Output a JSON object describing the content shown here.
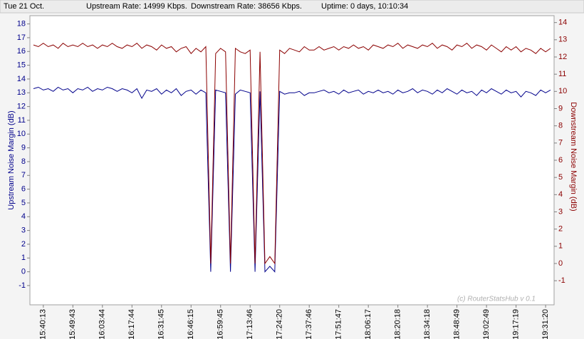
{
  "chart_data": {
    "type": "line",
    "header": {
      "date": "Tue 21 Oct.",
      "upstream_rate": "Upstream Rate: 14999 Kbps.",
      "downstream_rate": "Downstream Rate: 38656 Kbps.",
      "uptime": "Uptime: 0 days, 10:10:34"
    },
    "y_label": "Upstream Noise Margin (dB)",
    "y2_label": "Downstream Noise Margin (dB)",
    "watermark": "(c) RouterStatsHub v 0.1",
    "categories": [
      null,
      null,
      "15:40:13",
      null,
      null,
      null,
      null,
      null,
      "15:49:43",
      null,
      null,
      null,
      null,
      null,
      "16:03:44",
      null,
      null,
      null,
      null,
      null,
      "16:17:44",
      null,
      null,
      null,
      null,
      null,
      "16:31:45",
      null,
      null,
      null,
      null,
      null,
      "16:46:15",
      null,
      null,
      null,
      null,
      null,
      "16:59:45",
      null,
      null,
      null,
      null,
      null,
      "17:13:46",
      null,
      null,
      null,
      null,
      null,
      "17:24:20",
      null,
      null,
      null,
      null,
      null,
      "17:37:46",
      null,
      null,
      null,
      null,
      null,
      "17:51:47",
      null,
      null,
      null,
      null,
      null,
      "18:06:17",
      null,
      null,
      null,
      null,
      null,
      "18:20:18",
      null,
      null,
      null,
      null,
      null,
      "18:34:18",
      null,
      null,
      null,
      null,
      null,
      "18:48:49",
      null,
      null,
      null,
      null,
      null,
      "19:02:49",
      null,
      null,
      null,
      null,
      null,
      "19:17:19",
      null,
      null,
      null,
      null,
      null,
      "19:31:20",
      null
    ],
    "series": [
      {
        "name": "Upstream",
        "color": "#00008b",
        "axis": "y",
        "values": [
          13.3,
          13.4,
          13.2,
          13.3,
          13.1,
          13.4,
          13.2,
          13.3,
          13.0,
          13.3,
          13.2,
          13.4,
          13.1,
          13.3,
          13.2,
          13.4,
          13.3,
          13.1,
          13.3,
          13.2,
          13.0,
          13.3,
          12.6,
          13.2,
          13.1,
          13.3,
          12.9,
          13.2,
          13.0,
          13.3,
          12.8,
          13.1,
          13.2,
          12.9,
          13.2,
          13.0,
          0,
          13.2,
          13.1,
          13.0,
          0,
          12.9,
          13.2,
          13.1,
          13.0,
          0,
          13.1,
          0,
          0.4,
          0,
          13.1,
          12.9,
          13.0,
          13.0,
          13.1,
          12.8,
          13.0,
          13.0,
          13.1,
          13.2,
          13.0,
          13.1,
          12.9,
          13.2,
          13.0,
          13.1,
          13.2,
          12.9,
          13.1,
          13.0,
          13.2,
          13.0,
          13.1,
          12.9,
          13.2,
          13.0,
          13.1,
          13.3,
          13.0,
          13.2,
          13.1,
          12.9,
          13.2,
          13.0,
          13.3,
          13.1,
          12.9,
          13.2,
          13.0,
          13.1,
          12.8,
          13.2,
          13.0,
          13.3,
          13.1,
          12.9,
          13.2,
          13.0,
          13.1,
          12.7,
          13.1,
          13.0,
          12.8,
          13.2,
          13.0,
          13.2
        ]
      },
      {
        "name": "Downstream",
        "color": "#8b0000",
        "axis": "y2",
        "values": [
          12.7,
          12.6,
          12.8,
          12.6,
          12.7,
          12.5,
          12.8,
          12.6,
          12.7,
          12.6,
          12.8,
          12.6,
          12.7,
          12.5,
          12.7,
          12.6,
          12.8,
          12.6,
          12.5,
          12.7,
          12.6,
          12.8,
          12.5,
          12.7,
          12.6,
          12.4,
          12.7,
          12.5,
          12.6,
          12.3,
          12.5,
          12.6,
          12.2,
          12.5,
          12.3,
          12.6,
          0,
          12.2,
          12.5,
          12.3,
          0,
          12.5,
          12.3,
          12.2,
          12.4,
          0,
          12.3,
          0,
          0.4,
          0,
          12.4,
          12.2,
          12.5,
          12.4,
          12.3,
          12.6,
          12.4,
          12.4,
          12.6,
          12.4,
          12.5,
          12.6,
          12.4,
          12.6,
          12.5,
          12.7,
          12.5,
          12.6,
          12.4,
          12.7,
          12.6,
          12.5,
          12.7,
          12.6,
          12.8,
          12.5,
          12.7,
          12.6,
          12.5,
          12.7,
          12.6,
          12.8,
          12.5,
          12.7,
          12.6,
          12.4,
          12.7,
          12.6,
          12.8,
          12.5,
          12.7,
          12.6,
          12.4,
          12.7,
          12.5,
          12.3,
          12.6,
          12.4,
          12.6,
          12.3,
          12.5,
          12.4,
          12.2,
          12.5,
          12.3,
          12.5
        ]
      }
    ],
    "ylim": [
      -2.4,
      18.6
    ],
    "yticks": [
      -1,
      0,
      1,
      2,
      3,
      4,
      5,
      6,
      7,
      8,
      9,
      10,
      11,
      12,
      13,
      14,
      15,
      16,
      17,
      18
    ],
    "y2lim": [
      -2.4,
      14.4
    ],
    "y2ticks": [
      -1,
      0,
      1,
      2,
      3,
      4,
      5,
      6,
      7,
      8,
      9,
      10,
      11,
      12,
      13,
      14
    ]
  }
}
